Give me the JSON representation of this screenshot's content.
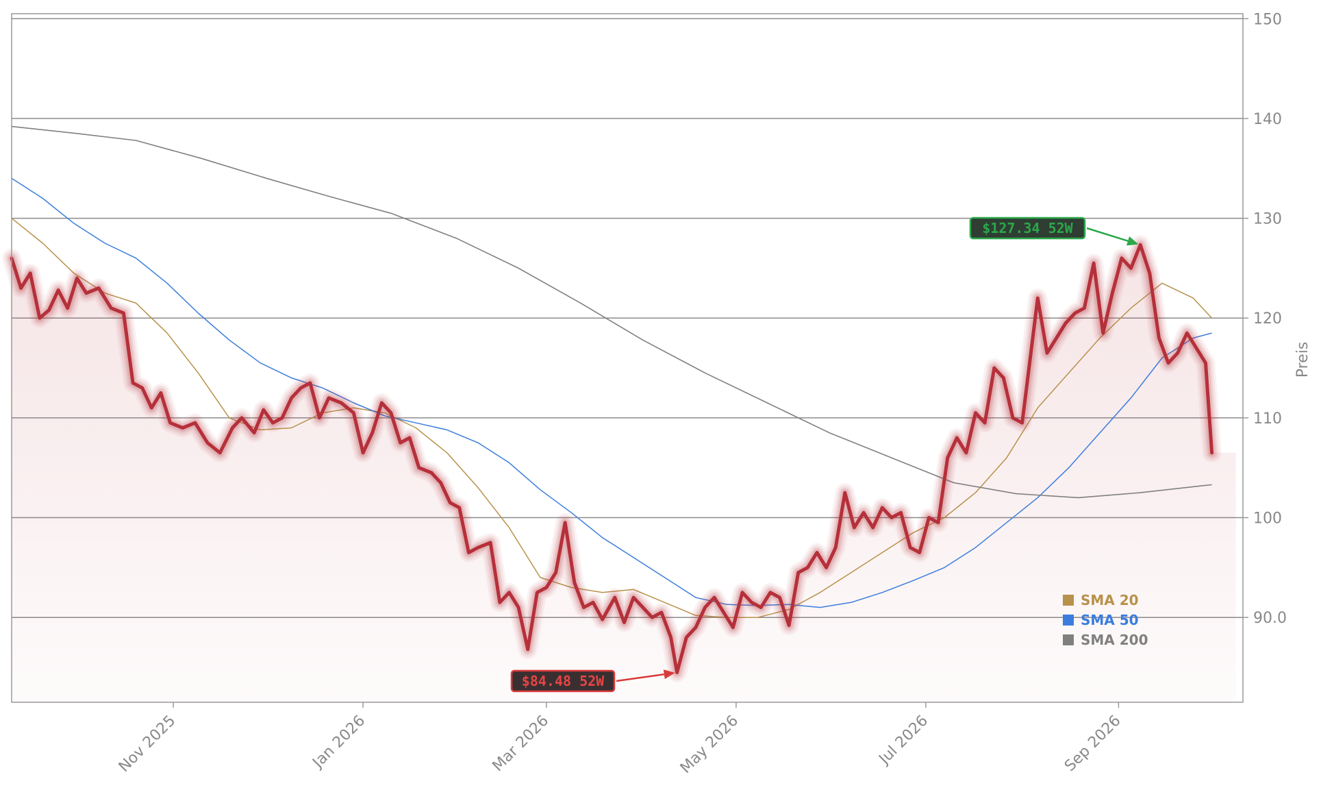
{
  "chart_data": {
    "type": "line",
    "title": "",
    "xlabel": "",
    "ylabel": "Preis",
    "ylim": [
      81.5,
      150.5
    ],
    "xlim": [
      "2025-09-10",
      "2026-10-11"
    ],
    "y_axis_position": "right",
    "y_ticks": [
      {
        "value": 90,
        "label": "90.0"
      },
      {
        "value": 100,
        "label": "100"
      },
      {
        "value": 110,
        "label": "110"
      },
      {
        "value": 120,
        "label": "120"
      },
      {
        "value": 130,
        "label": "130"
      },
      {
        "value": 140,
        "label": "140"
      },
      {
        "value": 150,
        "label": "150"
      }
    ],
    "x_ticks": [
      {
        "date": "2025-11-01",
        "label": "Nov 2025"
      },
      {
        "date": "2026-01-01",
        "label": "Jan 2026"
      },
      {
        "date": "2026-03-01",
        "label": "Mar 2026"
      },
      {
        "date": "2026-05-01",
        "label": "May 2026"
      },
      {
        "date": "2026-07-01",
        "label": "Jul 2026"
      },
      {
        "date": "2026-09-01",
        "label": "Sep 2026"
      }
    ],
    "grid": "horizontal",
    "legend_position": "bottom-right",
    "series": [
      {
        "name": "",
        "color": "#b5303a",
        "points": [
          [
            "2025-09-10",
            126.0
          ],
          [
            "2025-09-13",
            123.0
          ],
          [
            "2025-09-16",
            124.5
          ],
          [
            "2025-09-19",
            120.0
          ],
          [
            "2025-09-22",
            120.8
          ],
          [
            "2025-09-25",
            122.8
          ],
          [
            "2025-09-28",
            121.0
          ],
          [
            "2025-10-01",
            124.0
          ],
          [
            "2025-10-04",
            122.5
          ],
          [
            "2025-10-08",
            123.0
          ],
          [
            "2025-10-12",
            121.0
          ],
          [
            "2025-10-16",
            120.5
          ],
          [
            "2025-10-19",
            113.5
          ],
          [
            "2025-10-22",
            113.0
          ],
          [
            "2025-10-25",
            111.0
          ],
          [
            "2025-10-28",
            112.5
          ],
          [
            "2025-10-31",
            109.5
          ],
          [
            "2025-11-04",
            109.0
          ],
          [
            "2025-11-08",
            109.5
          ],
          [
            "2025-11-12",
            107.5
          ],
          [
            "2025-11-16",
            106.5
          ],
          [
            "2025-11-20",
            109.0
          ],
          [
            "2025-11-23",
            110.0
          ],
          [
            "2025-11-27",
            108.5
          ],
          [
            "2025-11-30",
            110.8
          ],
          [
            "2025-12-03",
            109.5
          ],
          [
            "2025-12-06",
            110.0
          ],
          [
            "2025-12-09",
            112.0
          ],
          [
            "2025-12-12",
            113.0
          ],
          [
            "2025-12-15",
            113.5
          ],
          [
            "2025-12-18",
            110.0
          ],
          [
            "2025-12-21",
            112.0
          ],
          [
            "2025-12-25",
            111.5
          ],
          [
            "2025-12-29",
            110.5
          ],
          [
            "2026-01-01",
            106.5
          ],
          [
            "2026-01-04",
            108.5
          ],
          [
            "2026-01-07",
            111.5
          ],
          [
            "2026-01-10",
            110.5
          ],
          [
            "2026-01-13",
            107.5
          ],
          [
            "2026-01-16",
            108.0
          ],
          [
            "2026-01-19",
            105.0
          ],
          [
            "2026-01-23",
            104.5
          ],
          [
            "2026-01-26",
            103.5
          ],
          [
            "2026-01-29",
            101.5
          ],
          [
            "2026-02-01",
            101.0
          ],
          [
            "2026-02-04",
            96.5
          ],
          [
            "2026-02-07",
            97.0
          ],
          [
            "2026-02-11",
            97.5
          ],
          [
            "2026-02-14",
            91.5
          ],
          [
            "2026-02-17",
            92.5
          ],
          [
            "2026-02-20",
            91.0
          ],
          [
            "2026-02-23",
            86.8
          ],
          [
            "2026-02-26",
            92.5
          ],
          [
            "2026-03-01",
            93.0
          ],
          [
            "2026-03-04",
            94.5
          ],
          [
            "2026-03-07",
            99.5
          ],
          [
            "2026-03-10",
            93.5
          ],
          [
            "2026-03-13",
            91.0
          ],
          [
            "2026-03-16",
            91.5
          ],
          [
            "2026-03-19",
            89.8
          ],
          [
            "2026-03-23",
            92.0
          ],
          [
            "2026-03-26",
            89.5
          ],
          [
            "2026-03-29",
            92.0
          ],
          [
            "2026-04-01",
            91.0
          ],
          [
            "2026-04-04",
            90.0
          ],
          [
            "2026-04-07",
            90.5
          ],
          [
            "2026-04-10",
            88.0
          ],
          [
            "2026-04-12",
            84.48
          ],
          [
            "2026-04-15",
            88.0
          ],
          [
            "2026-04-18",
            89.0
          ],
          [
            "2026-04-21",
            91.0
          ],
          [
            "2026-04-24",
            92.0
          ],
          [
            "2026-04-27",
            90.5
          ],
          [
            "2026-04-30",
            89.0
          ],
          [
            "2026-05-03",
            92.5
          ],
          [
            "2026-05-06",
            91.5
          ],
          [
            "2026-05-09",
            91.0
          ],
          [
            "2026-05-12",
            92.5
          ],
          [
            "2026-05-15",
            92.0
          ],
          [
            "2026-05-18",
            89.2
          ],
          [
            "2026-05-21",
            94.5
          ],
          [
            "2026-05-24",
            95.0
          ],
          [
            "2026-05-27",
            96.5
          ],
          [
            "2026-05-30",
            95.0
          ],
          [
            "2026-06-02",
            97.0
          ],
          [
            "2026-06-05",
            102.5
          ],
          [
            "2026-06-08",
            99.0
          ],
          [
            "2026-06-11",
            100.5
          ],
          [
            "2026-06-14",
            99.0
          ],
          [
            "2026-06-17",
            101.0
          ],
          [
            "2026-06-20",
            100.0
          ],
          [
            "2026-06-23",
            100.5
          ],
          [
            "2026-06-26",
            97.0
          ],
          [
            "2026-06-29",
            96.5
          ],
          [
            "2026-07-02",
            100.0
          ],
          [
            "2026-07-05",
            99.5
          ],
          [
            "2026-07-08",
            106.0
          ],
          [
            "2026-07-11",
            108.0
          ],
          [
            "2026-07-14",
            106.5
          ],
          [
            "2026-07-17",
            110.5
          ],
          [
            "2026-07-20",
            109.5
          ],
          [
            "2026-07-23",
            115.0
          ],
          [
            "2026-07-26",
            114.0
          ],
          [
            "2026-07-29",
            110.0
          ],
          [
            "2026-08-01",
            109.5
          ],
          [
            "2026-08-03",
            114.5
          ],
          [
            "2026-08-06",
            122.0
          ],
          [
            "2026-08-09",
            116.5
          ],
          [
            "2026-08-12",
            118.0
          ],
          [
            "2026-08-15",
            119.5
          ],
          [
            "2026-08-18",
            120.5
          ],
          [
            "2026-08-21",
            121.0
          ],
          [
            "2026-08-24",
            125.5
          ],
          [
            "2026-08-27",
            118.5
          ],
          [
            "2026-08-30",
            122.5
          ],
          [
            "2026-09-02",
            126.0
          ],
          [
            "2026-09-05",
            125.0
          ],
          [
            "2026-09-08",
            127.34
          ],
          [
            "2026-09-11",
            124.5
          ],
          [
            "2026-09-14",
            118.0
          ],
          [
            "2026-09-17",
            115.5
          ],
          [
            "2026-09-20",
            116.5
          ],
          [
            "2026-09-23",
            118.5
          ],
          [
            "2026-09-26",
            117.0
          ],
          [
            "2026-09-29",
            115.5
          ],
          [
            "2026-10-01",
            106.5
          ]
        ]
      },
      {
        "name": "SMA 20",
        "color": "#b8914a",
        "points": [
          [
            "2025-09-10",
            130.0
          ],
          [
            "2025-09-20",
            127.5
          ],
          [
            "2025-09-30",
            124.5
          ],
          [
            "2025-10-10",
            122.5
          ],
          [
            "2025-10-20",
            121.5
          ],
          [
            "2025-10-30",
            118.5
          ],
          [
            "2025-11-09",
            114.5
          ],
          [
            "2025-11-19",
            110.0
          ],
          [
            "2025-11-29",
            108.8
          ],
          [
            "2025-12-09",
            109.0
          ],
          [
            "2025-12-19",
            110.5
          ],
          [
            "2025-12-29",
            111.0
          ],
          [
            "2026-01-08",
            110.5
          ],
          [
            "2026-01-18",
            109.0
          ],
          [
            "2026-01-28",
            106.5
          ],
          [
            "2026-02-07",
            103.0
          ],
          [
            "2026-02-17",
            99.0
          ],
          [
            "2026-02-27",
            94.0
          ],
          [
            "2026-03-09",
            93.0
          ],
          [
            "2026-03-19",
            92.5
          ],
          [
            "2026-03-29",
            92.8
          ],
          [
            "2026-04-08",
            91.5
          ],
          [
            "2026-04-18",
            90.2
          ],
          [
            "2026-04-28",
            90.0
          ],
          [
            "2026-05-08",
            90.0
          ],
          [
            "2026-05-18",
            90.8
          ],
          [
            "2026-05-28",
            92.5
          ],
          [
            "2026-06-07",
            94.5
          ],
          [
            "2026-06-17",
            96.5
          ],
          [
            "2026-06-27",
            98.5
          ],
          [
            "2026-07-07",
            100.0
          ],
          [
            "2026-07-17",
            102.5
          ],
          [
            "2026-07-27",
            106.0
          ],
          [
            "2026-08-06",
            111.0
          ],
          [
            "2026-08-16",
            114.5
          ],
          [
            "2026-08-26",
            118.0
          ],
          [
            "2026-09-05",
            121.0
          ],
          [
            "2026-09-15",
            123.5
          ],
          [
            "2026-09-25",
            122.0
          ],
          [
            "2026-10-01",
            120.0
          ]
        ]
      },
      {
        "name": "SMA 50",
        "color": "#3b7ddd",
        "points": [
          [
            "2025-09-10",
            134.0
          ],
          [
            "2025-09-20",
            132.0
          ],
          [
            "2025-09-30",
            129.5
          ],
          [
            "2025-10-10",
            127.5
          ],
          [
            "2025-10-20",
            126.0
          ],
          [
            "2025-10-30",
            123.5
          ],
          [
            "2025-11-09",
            120.5
          ],
          [
            "2025-11-19",
            117.8
          ],
          [
            "2025-11-29",
            115.5
          ],
          [
            "2025-12-09",
            114.0
          ],
          [
            "2025-12-19",
            113.0
          ],
          [
            "2025-12-29",
            111.5
          ],
          [
            "2026-01-08",
            110.2
          ],
          [
            "2026-01-18",
            109.5
          ],
          [
            "2026-01-28",
            108.8
          ],
          [
            "2026-02-07",
            107.5
          ],
          [
            "2026-02-17",
            105.5
          ],
          [
            "2026-02-27",
            102.8
          ],
          [
            "2026-03-09",
            100.5
          ],
          [
            "2026-03-19",
            98.0
          ],
          [
            "2026-03-29",
            96.0
          ],
          [
            "2026-04-08",
            94.0
          ],
          [
            "2026-04-18",
            92.0
          ],
          [
            "2026-04-28",
            91.3
          ],
          [
            "2026-05-08",
            91.2
          ],
          [
            "2026-05-18",
            91.3
          ],
          [
            "2026-05-28",
            91.0
          ],
          [
            "2026-06-07",
            91.5
          ],
          [
            "2026-06-17",
            92.5
          ],
          [
            "2026-06-27",
            93.7
          ],
          [
            "2026-07-07",
            95.0
          ],
          [
            "2026-07-17",
            97.0
          ],
          [
            "2026-07-27",
            99.5
          ],
          [
            "2026-08-06",
            102.0
          ],
          [
            "2026-08-16",
            105.0
          ],
          [
            "2026-08-26",
            108.5
          ],
          [
            "2026-09-05",
            112.0
          ],
          [
            "2026-09-15",
            116.0
          ],
          [
            "2026-09-25",
            118.0
          ],
          [
            "2026-10-01",
            118.5
          ]
        ]
      },
      {
        "name": "SMA 200",
        "color": "#808080",
        "points": [
          [
            "2025-09-10",
            139.2
          ],
          [
            "2025-10-01",
            138.5
          ],
          [
            "2025-10-20",
            137.8
          ],
          [
            "2025-11-10",
            136.0
          ],
          [
            "2025-12-01",
            134.0
          ],
          [
            "2025-12-21",
            132.2
          ],
          [
            "2026-01-10",
            130.5
          ],
          [
            "2026-01-31",
            128.0
          ],
          [
            "2026-02-20",
            125.0
          ],
          [
            "2026-03-12",
            121.5
          ],
          [
            "2026-04-01",
            117.8
          ],
          [
            "2026-04-21",
            114.5
          ],
          [
            "2026-05-11",
            111.5
          ],
          [
            "2026-05-31",
            108.5
          ],
          [
            "2026-06-20",
            106.0
          ],
          [
            "2026-07-10",
            103.5
          ],
          [
            "2026-07-30",
            102.4
          ],
          [
            "2026-08-19",
            102.0
          ],
          [
            "2026-09-08",
            102.5
          ],
          [
            "2026-09-28",
            103.2
          ],
          [
            "2026-10-01",
            103.3
          ]
        ]
      }
    ],
    "annotations": [
      {
        "label": "$127.34 52W",
        "date": "2026-09-08",
        "value": 127.34,
        "color": "#2aa84a",
        "text_color": "#2aa84a",
        "box_color": "#2f3d33"
      },
      {
        "label": "$84.48 52W",
        "date": "2026-04-12",
        "value": 84.48,
        "color": "#d93a3a",
        "text_color": "#e64545",
        "box_color": "#3a2f30"
      }
    ]
  }
}
